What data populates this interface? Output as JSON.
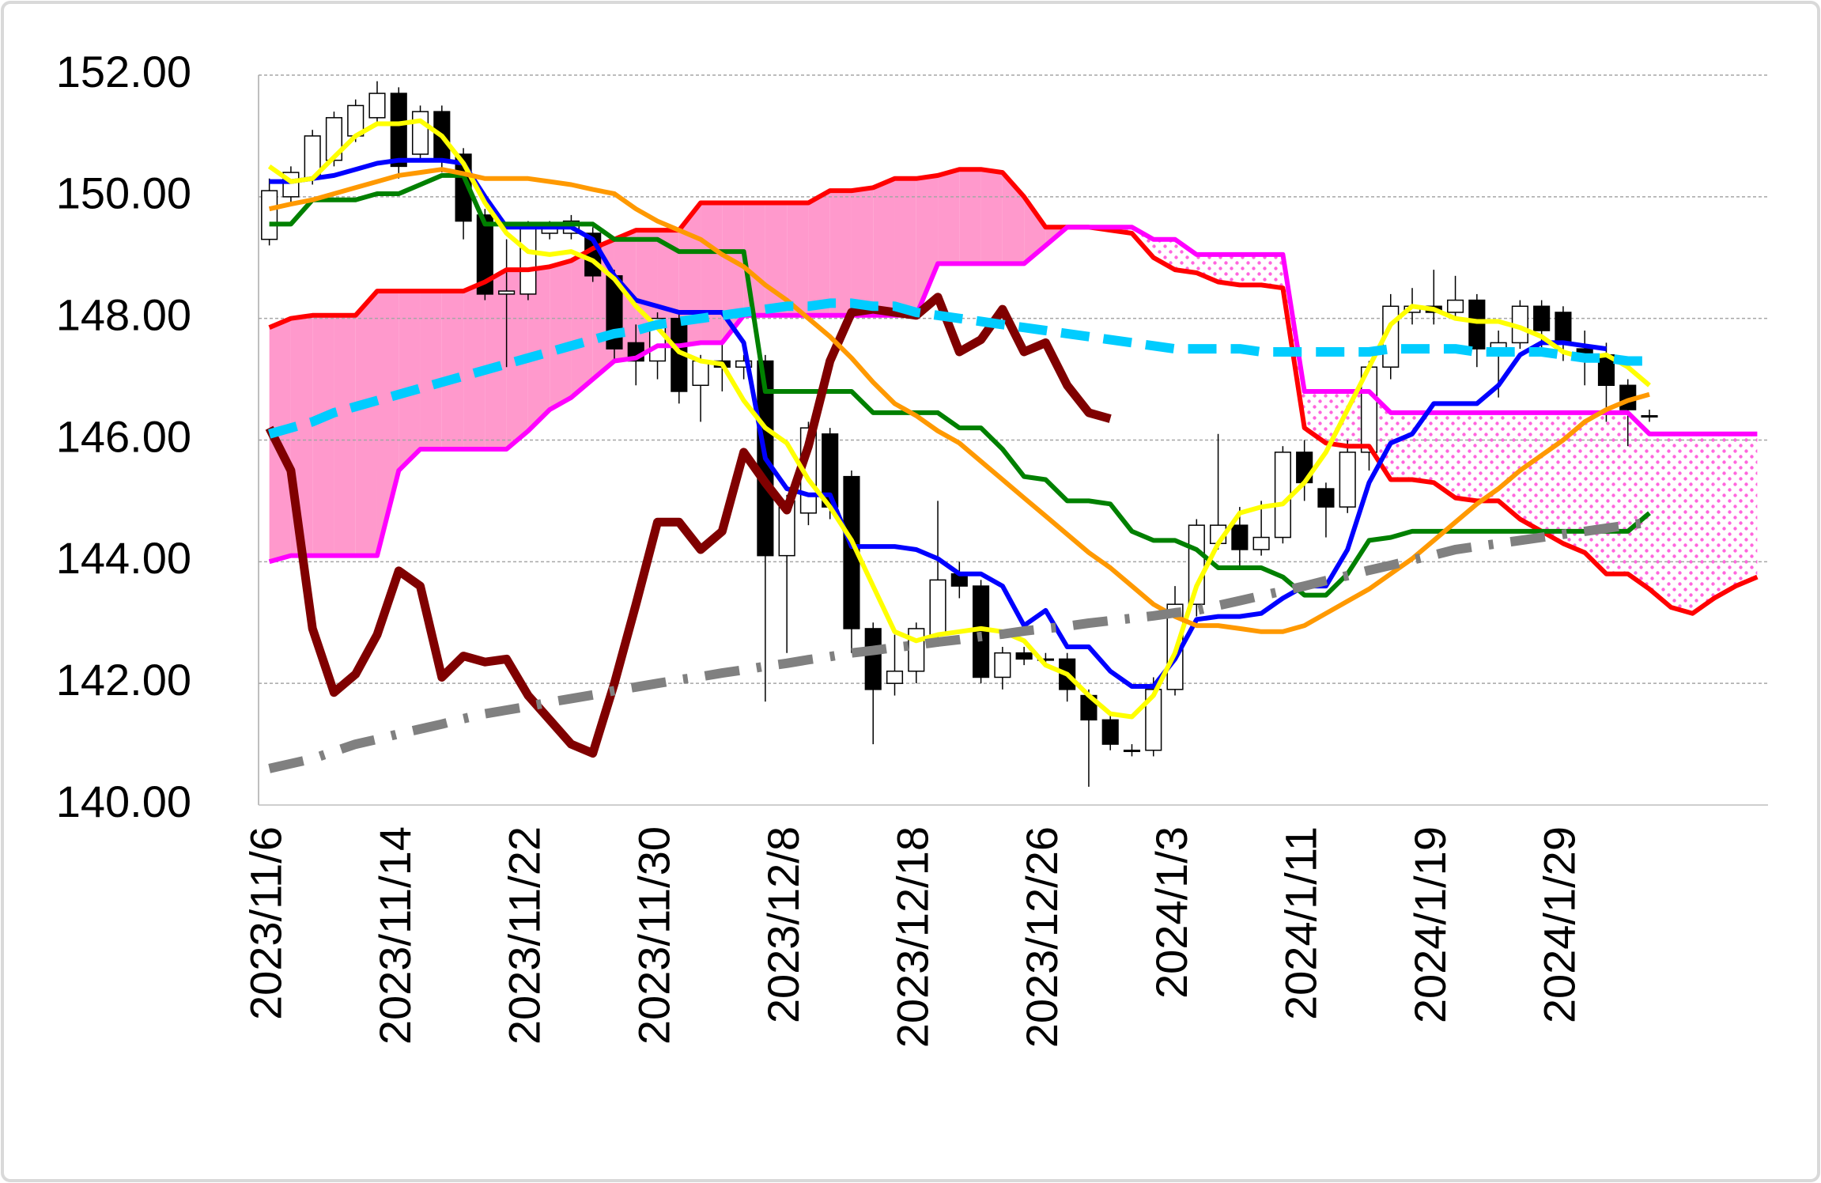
{
  "chart_data": {
    "type": "candlestick",
    "categories": [
      "2023/11/6",
      null,
      null,
      null,
      null,
      null,
      "2023/11/14",
      null,
      null,
      null,
      null,
      null,
      "2023/11/22",
      null,
      null,
      null,
      null,
      null,
      "2023/11/30",
      null,
      null,
      null,
      null,
      null,
      "2023/12/8",
      null,
      null,
      null,
      null,
      null,
      "2023/12/18",
      null,
      null,
      null,
      null,
      null,
      "2023/12/26",
      null,
      null,
      null,
      null,
      null,
      "2024/1/3",
      null,
      null,
      null,
      null,
      null,
      "2024/1/11",
      null,
      null,
      null,
      null,
      null,
      "2024/1/19",
      null,
      null,
      null,
      null,
      null,
      "2024/1/29",
      null,
      null,
      null,
      null,
      null,
      null,
      null,
      null,
      null
    ],
    "open": [
      149.3,
      150.0,
      150.3,
      150.6,
      151.0,
      151.3,
      151.7,
      150.7,
      151.4,
      150.7,
      149.7,
      148.4,
      148.4,
      149.4,
      149.4,
      149.4,
      148.7,
      147.6,
      147.3,
      148.0,
      146.9,
      147.3,
      147.2,
      147.3,
      144.1,
      144.8,
      146.1,
      145.4,
      142.9,
      142.0,
      142.2,
      142.8,
      143.8,
      143.6,
      142.1,
      142.5,
      142.4,
      142.4,
      141.8,
      141.4,
      140.9,
      140.9,
      141.9,
      143.3,
      144.3,
      144.6,
      144.2,
      144.4,
      145.8,
      145.2,
      144.9,
      145.8,
      147.2,
      148.1,
      148.2,
      148.1,
      148.3,
      147.5,
      147.6,
      148.2,
      148.1,
      147.5,
      147.4,
      146.9,
      146.4,
      null,
      null,
      null,
      null,
      null
    ],
    "high": [
      150.3,
      150.5,
      151.1,
      151.4,
      151.6,
      151.9,
      151.8,
      151.5,
      151.5,
      150.8,
      149.8,
      149.3,
      149.6,
      149.6,
      149.7,
      149.5,
      148.8,
      147.9,
      148.1,
      148.1,
      147.4,
      147.6,
      147.4,
      147.4,
      145.1,
      146.3,
      146.2,
      145.5,
      143.0,
      142.8,
      143.0,
      145.0,
      144.0,
      143.7,
      142.6,
      142.6,
      142.5,
      142.5,
      141.9,
      141.5,
      141.0,
      142.1,
      143.6,
      144.7,
      146.1,
      144.9,
      145.0,
      145.9,
      146.0,
      145.3,
      146.0,
      147.3,
      148.4,
      148.5,
      148.8,
      148.7,
      148.4,
      147.8,
      148.3,
      148.3,
      148.2,
      147.8,
      147.6,
      147.0,
      146.5,
      null,
      null,
      null,
      null,
      null
    ],
    "low": [
      149.2,
      149.9,
      150.2,
      150.5,
      150.9,
      151.2,
      150.3,
      150.6,
      150.4,
      149.3,
      148.3,
      147.2,
      148.3,
      149.3,
      149.3,
      148.6,
      147.3,
      146.9,
      147.0,
      146.6,
      146.3,
      146.8,
      147.0,
      141.7,
      142.5,
      144.6,
      144.7,
      142.5,
      141.0,
      141.8,
      142.0,
      142.6,
      143.4,
      142.0,
      141.9,
      142.3,
      142.3,
      141.7,
      140.3,
      140.9,
      140.8,
      140.8,
      141.8,
      143.1,
      144.2,
      143.9,
      144.1,
      144.3,
      145.0,
      144.4,
      144.8,
      145.5,
      147.0,
      147.9,
      147.9,
      148.0,
      147.2,
      146.7,
      147.5,
      147.5,
      147.3,
      146.9,
      146.3,
      145.9,
      146.3,
      null,
      null,
      null,
      null,
      null
    ],
    "close": [
      150.1,
      150.4,
      151.0,
      151.3,
      151.5,
      151.7,
      150.5,
      151.4,
      150.6,
      149.6,
      148.4,
      148.45,
      149.5,
      149.5,
      149.6,
      148.7,
      147.5,
      147.3,
      148.0,
      146.8,
      147.3,
      147.2,
      147.3,
      144.1,
      145.0,
      146.2,
      144.9,
      142.9,
      141.9,
      142.2,
      142.9,
      143.7,
      143.6,
      142.1,
      142.5,
      142.4,
      142.4,
      141.9,
      141.4,
      141.0,
      140.9,
      141.9,
      143.3,
      144.6,
      144.6,
      144.2,
      144.4,
      145.8,
      145.3,
      144.9,
      145.8,
      147.2,
      148.2,
      148.2,
      148.1,
      148.3,
      147.5,
      147.6,
      148.2,
      147.8,
      147.6,
      147.4,
      146.9,
      146.5,
      146.4,
      null,
      null,
      null,
      null,
      null
    ],
    "up_color": "#ffffff",
    "down_color": "#000000",
    "cloud": {
      "span_a": {
        "color": "#ff0000",
        "values": [
          147.85,
          148.0,
          148.05,
          148.05,
          148.05,
          148.45,
          148.45,
          148.45,
          148.45,
          148.45,
          148.6,
          148.8,
          148.8,
          148.85,
          148.95,
          149.15,
          149.3,
          149.45,
          149.45,
          149.45,
          149.9,
          149.9,
          149.9,
          149.9,
          149.9,
          149.9,
          150.1,
          150.1,
          150.15,
          150.3,
          150.3,
          150.35,
          150.45,
          150.45,
          150.4,
          150.0,
          149.5,
          149.5,
          149.5,
          149.45,
          149.4,
          149.0,
          148.8,
          148.75,
          148.6,
          148.55,
          148.55,
          148.5,
          146.2,
          145.95,
          145.9,
          145.9,
          145.35,
          145.35,
          145.3,
          145.05,
          145.0,
          145.0,
          144.7,
          144.5,
          144.3,
          144.15,
          143.8,
          143.8,
          143.55,
          143.25,
          143.15,
          143.4,
          143.6,
          143.75
        ]
      },
      "span_b": {
        "color": "#ff00ff",
        "values": [
          144.0,
          144.1,
          144.1,
          144.1,
          144.1,
          144.1,
          145.5,
          145.85,
          145.85,
          145.85,
          145.85,
          145.85,
          146.15,
          146.5,
          146.7,
          147.0,
          147.3,
          147.35,
          147.55,
          147.55,
          147.6,
          147.6,
          148.05,
          148.05,
          148.05,
          148.05,
          148.05,
          148.05,
          148.05,
          148.05,
          148.05,
          148.9,
          148.9,
          148.9,
          148.9,
          148.9,
          149.2,
          149.5,
          149.5,
          149.5,
          149.5,
          149.3,
          149.3,
          149.05,
          149.05,
          149.05,
          149.05,
          149.05,
          146.8,
          146.8,
          146.8,
          146.8,
          146.45,
          146.45,
          146.45,
          146.45,
          146.45,
          146.45,
          146.45,
          146.45,
          146.45,
          146.45,
          146.45,
          146.45,
          146.1,
          146.1,
          146.1,
          146.1,
          146.1,
          146.1
        ]
      },
      "a_above_color": "#ff99cc",
      "b_above_color": "#ff66dd"
    },
    "series": [
      {
        "color": "#0000ff",
        "style": "solid",
        "width": 6,
        "values": [
          150.25,
          150.25,
          150.3,
          150.35,
          150.45,
          150.55,
          150.6,
          150.6,
          150.6,
          150.55,
          150.0,
          149.5,
          149.5,
          149.5,
          149.5,
          149.3,
          148.7,
          148.3,
          148.2,
          148.1,
          148.1,
          148.1,
          147.6,
          145.7,
          145.2,
          145.1,
          145.1,
          144.25,
          144.25,
          144.25,
          144.2,
          144.05,
          143.8,
          143.8,
          143.6,
          142.95,
          143.2,
          142.6,
          142.6,
          142.2,
          141.95,
          141.95,
          142.4,
          143.05,
          143.1,
          143.1,
          143.15,
          143.4,
          143.6,
          143.6,
          144.2,
          145.3,
          145.95,
          146.1,
          146.6,
          146.6,
          146.6,
          146.9,
          147.4,
          147.6,
          147.6,
          147.55,
          147.5,
          null,
          null,
          null,
          null,
          null,
          null,
          null
        ]
      },
      {
        "color": "#008000",
        "style": "solid",
        "width": 6,
        "values": [
          149.55,
          149.55,
          149.95,
          149.95,
          149.95,
          150.05,
          150.05,
          150.2,
          150.35,
          150.35,
          149.55,
          149.55,
          149.55,
          149.55,
          149.55,
          149.55,
          149.3,
          149.3,
          149.3,
          149.1,
          149.1,
          149.1,
          149.1,
          146.8,
          146.8,
          146.8,
          146.8,
          146.8,
          146.45,
          146.45,
          146.45,
          146.45,
          146.2,
          146.2,
          145.85,
          145.4,
          145.35,
          145.0,
          145.0,
          144.95,
          144.5,
          144.35,
          144.35,
          144.2,
          143.9,
          143.9,
          143.9,
          143.75,
          143.45,
          143.45,
          143.8,
          144.35,
          144.4,
          144.5,
          144.5,
          144.5,
          144.5,
          144.5,
          144.5,
          144.5,
          144.5,
          144.5,
          144.5,
          144.5,
          144.8,
          null,
          null,
          null,
          null,
          null
        ]
      },
      {
        "color": "#800000",
        "style": "solid",
        "width": 11,
        "values": [
          146.2,
          145.5,
          142.9,
          141.85,
          142.15,
          142.8,
          143.85,
          143.6,
          142.1,
          142.45,
          142.35,
          142.4,
          141.8,
          141.4,
          141.0,
          140.85,
          142.0,
          143.3,
          144.65,
          144.65,
          144.2,
          144.5,
          145.8,
          145.3,
          144.85,
          145.9,
          147.3,
          148.1,
          148.15,
          148.1,
          148.05,
          148.35,
          147.45,
          147.65,
          148.15,
          147.45,
          147.6,
          146.9,
          146.45,
          146.35,
          null,
          null,
          null,
          null,
          null,
          null,
          null,
          null,
          null,
          null,
          null,
          null,
          null,
          null,
          null,
          null,
          null,
          null,
          null,
          null,
          null,
          null,
          null,
          null,
          null,
          null,
          null,
          null,
          null,
          null
        ]
      },
      {
        "color": "#ffff00",
        "style": "solid",
        "width": 6,
        "values": [
          150.5,
          150.25,
          150.3,
          150.65,
          151.0,
          151.2,
          151.2,
          151.25,
          151.0,
          150.55,
          149.9,
          149.4,
          149.1,
          149.05,
          149.1,
          148.95,
          148.65,
          148.2,
          147.85,
          147.45,
          147.3,
          147.25,
          146.65,
          146.2,
          145.95,
          145.35,
          144.9,
          144.35,
          143.6,
          142.85,
          142.7,
          142.8,
          142.85,
          142.9,
          142.85,
          142.7,
          142.3,
          142.15,
          141.8,
          141.5,
          141.45,
          141.8,
          142.5,
          143.6,
          144.3,
          144.8,
          144.9,
          144.95,
          145.3,
          145.8,
          146.5,
          147.2,
          147.9,
          148.2,
          148.15,
          148.0,
          147.95,
          147.95,
          147.85,
          147.7,
          147.45,
          147.35,
          147.4,
          147.2,
          146.9,
          null,
          null,
          null,
          null,
          null
        ]
      },
      {
        "color": "#ff9900",
        "style": "solid",
        "width": 6,
        "values": [
          149.8,
          149.88,
          149.95,
          150.05,
          150.15,
          150.25,
          150.35,
          150.4,
          150.45,
          150.38,
          150.3,
          150.3,
          150.3,
          150.25,
          150.2,
          150.12,
          150.05,
          149.8,
          149.6,
          149.45,
          149.3,
          149.05,
          148.85,
          148.55,
          148.3,
          148.0,
          147.7,
          147.35,
          146.95,
          146.6,
          146.4,
          146.15,
          145.95,
          145.65,
          145.35,
          145.05,
          144.75,
          144.45,
          144.15,
          143.9,
          143.6,
          143.3,
          143.1,
          142.95,
          142.95,
          142.9,
          142.85,
          142.85,
          142.95,
          143.15,
          143.35,
          143.55,
          143.8,
          144.05,
          144.35,
          144.65,
          144.95,
          145.2,
          145.5,
          145.75,
          146.0,
          146.3,
          146.5,
          146.65,
          146.75,
          null,
          null,
          null,
          null,
          null
        ]
      },
      {
        "color": "#00ccff",
        "style": "dashed",
        "width": 12,
        "values": [
          146.1,
          146.2,
          146.3,
          146.45,
          146.55,
          146.65,
          146.75,
          146.85,
          146.95,
          147.05,
          147.15,
          147.25,
          147.35,
          147.45,
          147.55,
          147.65,
          147.75,
          147.8,
          147.9,
          147.95,
          148.0,
          148.05,
          148.1,
          148.15,
          148.2,
          148.2,
          148.25,
          148.25,
          148.2,
          148.2,
          148.1,
          148.05,
          148.0,
          147.95,
          147.9,
          147.85,
          147.8,
          147.75,
          147.7,
          147.65,
          147.6,
          147.55,
          147.5,
          147.5,
          147.5,
          147.5,
          147.45,
          147.45,
          147.45,
          147.45,
          147.45,
          147.45,
          147.5,
          147.5,
          147.5,
          147.5,
          147.45,
          147.45,
          147.45,
          147.45,
          147.4,
          147.35,
          147.35,
          147.3,
          147.3,
          null,
          null,
          null,
          null,
          null
        ]
      },
      {
        "color": "#808080",
        "style": "dash-dot",
        "width": 12,
        "values": [
          140.6,
          140.68,
          140.76,
          140.88,
          141.0,
          141.08,
          141.17,
          141.25,
          141.33,
          141.42,
          141.5,
          141.56,
          141.62,
          141.69,
          141.75,
          141.81,
          141.88,
          141.94,
          142.0,
          142.06,
          142.11,
          142.17,
          142.22,
          142.28,
          142.33,
          142.39,
          142.44,
          142.5,
          142.54,
          142.59,
          142.63,
          142.68,
          142.72,
          142.77,
          142.81,
          142.86,
          142.9,
          142.94,
          142.99,
          143.03,
          143.07,
          143.11,
          143.16,
          143.2,
          143.28,
          143.36,
          143.44,
          143.52,
          143.6,
          143.69,
          143.77,
          143.86,
          143.94,
          144.03,
          144.11,
          144.2,
          144.25,
          144.3,
          144.35,
          144.4,
          144.45,
          144.5,
          144.55,
          144.6,
          144.65,
          null,
          null,
          null,
          null,
          null
        ]
      }
    ],
    "ylim": [
      140,
      152
    ],
    "yticks": [
      {
        "value": 140,
        "label": "140.00"
      },
      {
        "value": 142,
        "label": "142.00"
      },
      {
        "value": 144,
        "label": "144.00"
      },
      {
        "value": 146,
        "label": "146.00"
      },
      {
        "value": 148,
        "label": "148.00"
      },
      {
        "value": 150,
        "label": "150.00"
      },
      {
        "value": 152,
        "label": "152.00"
      }
    ],
    "grid": true
  }
}
